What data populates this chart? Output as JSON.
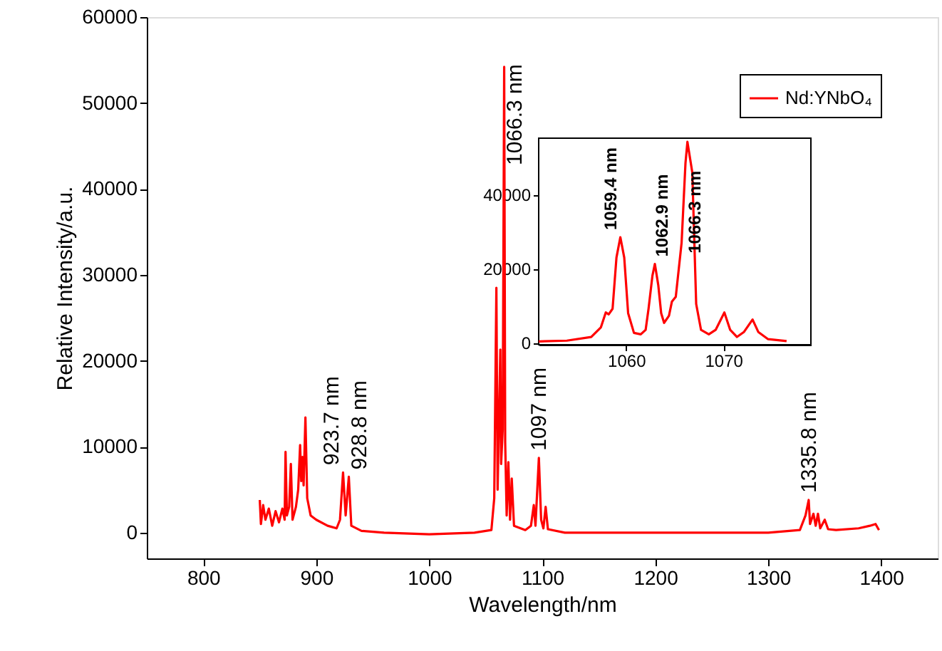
{
  "chart_data": [
    {
      "type": "line",
      "xlabel": "Wavelength/nm",
      "ylabel": "Relative Intensity/a.u.",
      "x": [
        850,
        851,
        853,
        855,
        858,
        861,
        864,
        867,
        870,
        872,
        872.8,
        874,
        876,
        877.5,
        879,
        882,
        884,
        885.7,
        886.7,
        887.7,
        888.8,
        890.4,
        892,
        895,
        900,
        910,
        918,
        921,
        923.7,
        926,
        928.8,
        931,
        940,
        960,
        1000,
        1040,
        1055,
        1057.5,
        1059.4,
        1060.5,
        1062.9,
        1063.6,
        1065,
        1066.3,
        1067.2,
        1068.5,
        1070,
        1071.5,
        1073,
        1075,
        1085,
        1090,
        1092.5,
        1094,
        1097,
        1099,
        1101,
        1103,
        1105,
        1120,
        1200,
        1300,
        1328,
        1333,
        1335.8,
        1337,
        1340,
        1342,
        1344,
        1346,
        1350,
        1353,
        1360,
        1380,
        1390,
        1395,
        1398
      ],
      "series": [
        {
          "name": "Nd:YNbO₄",
          "color": "#ff0000",
          "values": [
            3800,
            1000,
            3200,
            1500,
            2800,
            800,
            2500,
            1200,
            2800,
            1500,
            9400,
            2000,
            3000,
            8000,
            1500,
            3000,
            5000,
            10200,
            6000,
            8800,
            5500,
            13400,
            4000,
            2000,
            1500,
            800,
            500,
            1500,
            7000,
            2000,
            6500,
            800,
            200,
            0,
            -200,
            0,
            300,
            4000,
            28500,
            5000,
            21300,
            8000,
            12000,
            54200,
            10500,
            2000,
            8200,
            1500,
            6300,
            800,
            300,
            800,
            3200,
            800,
            8700,
            1500,
            500,
            3000,
            400,
            0,
            0,
            0,
            300,
            2000,
            3800,
            1000,
            2200,
            800,
            2200,
            500,
            1500,
            400,
            300,
            500,
            800,
            1000,
            300
          ]
        }
      ],
      "xlim": [
        750,
        1450
      ],
      "xticks": [
        800,
        900,
        1000,
        1100,
        1200,
        1300,
        1400
      ],
      "ylim": [
        -3000,
        60000
      ],
      "yticks": [
        0,
        10000,
        20000,
        30000,
        40000,
        50000,
        60000
      ],
      "grid": false,
      "legend": "top right",
      "marker": "none",
      "line_style": "solid",
      "annotations": [
        {
          "text": "923.7 nm",
          "x": 923.7,
          "y": 7000
        },
        {
          "text": "928.8 nm",
          "x": 928.8,
          "y": 6500
        },
        {
          "text": "1066.3 nm",
          "x": 1066.3,
          "y": 54200
        },
        {
          "text": "1097 nm",
          "x": 1097,
          "y": 8700
        },
        {
          "text": "1335.8 nm",
          "x": 1335.8,
          "y": 3800
        }
      ]
    },
    {
      "type": "line",
      "x": [
        1051.0,
        1053.9,
        1056.4,
        1057.4,
        1057.9,
        1058.2,
        1058.6,
        1059.0,
        1059.4,
        1059.8,
        1060.2,
        1060.8,
        1061.5,
        1062.0,
        1062.3,
        1062.7,
        1062.95,
        1063.3,
        1063.6,
        1063.9,
        1064.4,
        1064.7,
        1065.1,
        1065.7,
        1066.1,
        1066.3,
        1066.8,
        1067.2,
        1067.7,
        1068.5,
        1069.2,
        1070.1,
        1070.7,
        1071.4,
        1072.1,
        1073.0,
        1073.6,
        1074.6,
        1076.5
      ],
      "series": [
        {
          "color": "#ff0000",
          "values": [
            400,
            600,
            1600,
            4200,
            8200,
            7700,
            9200,
            23000,
            28500,
            23000,
            8000,
            2700,
            2300,
            3500,
            9200,
            18100,
            21300,
            15600,
            8000,
            5400,
            7300,
            11100,
            12400,
            27000,
            48500,
            54200,
            46000,
            10500,
            3500,
            2300,
            3500,
            8200,
            3500,
            1600,
            2900,
            6300,
            2900,
            1000,
            500
          ]
        }
      ],
      "xlim": [
        1051,
        1079
      ],
      "xticks": [
        1060,
        1070
      ],
      "ylim": [
        -500,
        55200
      ],
      "yticks": [
        0,
        20000,
        40000
      ],
      "grid": false,
      "marker": "none",
      "line_style": "solid",
      "annotations": [
        {
          "text": "1059.4 nm",
          "x": 1059.4,
          "y": 28500
        },
        {
          "text": "1062.9 nm",
          "x": 1062.95,
          "y": 21300
        },
        {
          "text": "1066.3 nm",
          "x": 1066.3,
          "y": 54200
        }
      ]
    }
  ]
}
